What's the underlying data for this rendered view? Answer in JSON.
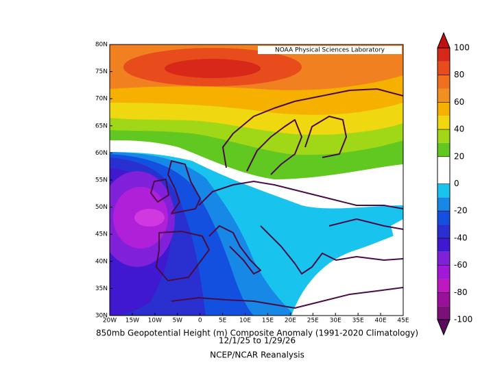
{
  "map": {
    "credit": "NOAA Physical Sciences Laboratory",
    "lon_labels": [
      "20W",
      "15W",
      "10W",
      "5W",
      "0",
      "5E",
      "10E",
      "15E",
      "20E",
      "25E",
      "30E",
      "35E",
      "40E",
      "45E"
    ],
    "lat_labels": [
      "80N",
      "75N",
      "70N",
      "65N",
      "60N",
      "55N",
      "50N",
      "45N",
      "40N",
      "35N",
      "30N"
    ],
    "caption": [
      "850mb Geopotential Height (m) Composite Anomaly (1991-2020 Climatology)",
      "12/1/25  to 1/29/26",
      "NCEP/NCAR Reanalysis"
    ],
    "colorbar": {
      "ticks": [
        -100,
        -80,
        -60,
        -40,
        -20,
        0,
        20,
        40,
        60,
        80,
        100
      ],
      "lim": [
        -100,
        100
      ],
      "colors": [
        "#5c0a5c",
        "#7a107a",
        "#9a109a",
        "#c018c0",
        "#a018d8",
        "#8020d8",
        "#4018d0",
        "#2a30d0",
        "#1450e0",
        "#1888e6",
        "#18c4ee",
        "#ffffff",
        "#ffffff",
        "#60c820",
        "#a0d818",
        "#f0d810",
        "#f5b000",
        "#f09020",
        "#f07020",
        "#e84c1c",
        "#d8281a",
        "#c01010"
      ]
    }
  }
}
